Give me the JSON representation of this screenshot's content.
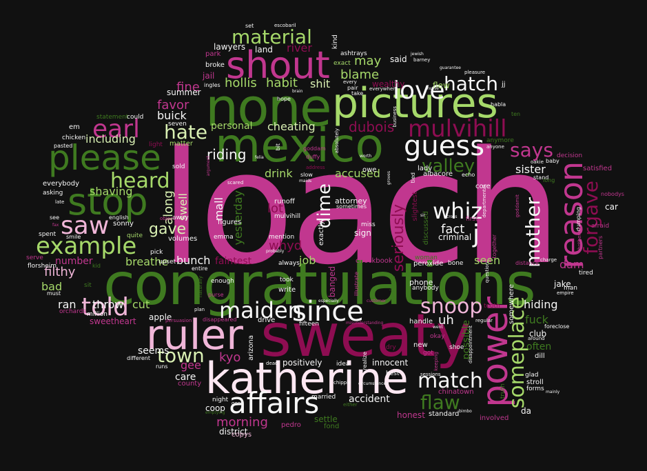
{
  "colors": {
    "background": "#111111",
    "magenta": "#c1378f",
    "dark_magenta": "#8e0d52",
    "pink": "#f0b6d8",
    "light_pink": "#fde7f2",
    "dark_green": "#3f7a20",
    "green": "#4d9221",
    "light_green": "#a6d96a",
    "pale_green": "#d9f0b3",
    "white": "#f7f7f7"
  },
  "words": {
    "loach": "loach",
    "congratulations": "congratulations",
    "sweaty": "sweaty",
    "katherine": "katherine",
    "mexico": "mexico",
    "none": "none",
    "pictures": "pictures",
    "ruler": "ruler",
    "power": "power",
    "stop": "stop",
    "please": "please",
    "shout": "shout",
    "affairs": "affairs",
    "reason": "reason",
    "example": "example",
    "since": "since",
    "love": "love",
    "guess": "guess",
    "mulvihill": "mulvihill",
    "someplace": "someplace",
    "saw": "saw",
    "told": "told",
    "earl": "earl",
    "match": "match",
    "maiden": "maiden",
    "heard": "heard",
    "hatch": "hatch",
    "whiz": "whiz",
    "snoop": "snoop",
    "material": "material",
    "valley": "valley",
    "forgave": "forgave",
    "says": "says",
    "mother": "mother",
    "flaw": "flaw",
    "town": "town",
    "hate": "hate",
    "dime": "dime",
    "j": "j",
    "morning": "morning",
    "riding": "riding",
    "dubois": "dubois",
    "gave": "gave",
    "seriously": "seriously",
    "including": "including",
    "favor": "favor",
    "fine": "fine",
    "buick": "buick",
    "hollis": "hollis",
    "habit": "habit",
    "blame": "blame",
    "may": "may",
    "shit": "shit",
    "river": "river",
    "cheating": "cheating",
    "personal": "personal",
    "shaving": "shaving",
    "swell": "swell",
    "along": "along",
    "accused": "accused",
    "drink": "drink",
    "yesterday": "yesterday",
    "mall": "mall",
    "lot": "lot",
    "whyd": "whyd",
    "bunch": "bunch",
    "breathe": "breathe",
    "faintest": "faintest",
    "job": "job",
    "fact": "fact",
    "criminal": "criminal",
    "seen": "seen",
    "number": "number",
    "filthy": "filthy",
    "bad": "bad",
    "ran": "ran",
    "throw": "throw",
    "cut": "cut",
    "hiding": "hiding",
    "fuck": "fuck",
    "club": "club",
    "often": "often",
    "jake": "jake",
    "dam": "dam",
    "sister": "sister",
    "uh": "uh",
    "possible": "possible",
    "kyo": "kyo",
    "gee": "gee",
    "care": "care",
    "seems": "seems",
    "accident": "accident",
    "positively": "positively",
    "innocent": "innocent",
    "coop": "coop",
    "district": "district",
    "copys": "copys",
    "settle": "settle",
    "fond": "fond",
    "pedro": "pedro",
    "honest": "honest",
    "standard": "standard",
    "involved": "involved",
    "da": "da",
    "sweetheart": "sweetheart",
    "apple": "apple",
    "summer": "summer",
    "lawyers": "lawyers",
    "land": "land",
    "park": "park",
    "broke": "broke",
    "jail": "jail",
    "said": "said",
    "wealthy": "wealthy",
    "flew": "flew",
    "jj": "jj",
    "kind": "kind",
    "ashtrays": "ashtrays",
    "exact": "exact",
    "em": "em",
    "chicken": "chicken",
    "pasted": "pasted",
    "matter": "matter",
    "light": "light",
    "everybody": "everybody",
    "asking": "asking",
    "sonny": "sonny",
    "spent": "spent",
    "quite": "quite",
    "volumes": "volumes",
    "pick": "pick",
    "upset": "upset",
    "always": "always",
    "took": "took",
    "write": "write",
    "enough": "enough",
    "phone": "phone",
    "anybody": "anybody",
    "peroxide": "peroxide",
    "bone": "bone",
    "checkbook": "checkbook",
    "woman": "woman",
    "okay": "okay",
    "new": "new",
    "got": "got",
    "handle": "handle",
    "shoe": "shoe",
    "fifteen": "fifteen",
    "drive": "drive",
    "arizona": "arizona",
    "night": "night",
    "married": "married",
    "idea": "idea",
    "best": "best",
    "sessions": "sessions",
    "chinatown": "chinatown",
    "glad": "glad",
    "stroll": "stroll",
    "forms": "forms",
    "dill": "dill",
    "around": "around",
    "foreclose": "foreclose",
    "man": "man",
    "empire": "empire",
    "tired": "tired",
    "afraid": "afraid",
    "car": "car",
    "satisfied": "satisfied",
    "decision": "decision",
    "stand": "stand",
    "core": "core",
    "albacore": "albacore",
    "lady": "lady",
    "echo": "echo",
    "owe": "owe",
    "mention": "mention",
    "sign": "sign",
    "miss": "miss",
    "sometimes": "sometimes",
    "attorney": "attorney",
    "runoff": "runoff",
    "figures": "figures",
    "emma": "emma",
    "mulvihill_small": "mulvihill",
    "sold": "sold",
    "seven": "seven",
    "away": "away",
    "entire": "entire",
    "english": "english",
    "must": "must",
    "sit": "sit",
    "kid": "kid",
    "orchards": "orchards",
    "million": "million",
    "different": "different",
    "runs": "runs",
    "county": "county",
    "statement": "statement",
    "could": "could",
    "serve": "serve",
    "florsheim": "florsheim",
    "ingles": "ingles",
    "set": "set",
    "escobar": "escobaril",
    "tooth": "tooth",
    "somewhere": "somewhere",
    "distance": "distance",
    "together": "together",
    "baby": "baby",
    "long": "long",
    "nobodys": "nobodys",
    "partners": "partners",
    "dumping": "dumping",
    "hope": "hope",
    "habla": "habla",
    "everywhere": "everywhere",
    "take": "take",
    "ten": "ten",
    "anymore": "anymore",
    "anyone": "anyone",
    "bit": "bit",
    "goddam": "goddam",
    "duffy": "duffy",
    "address": "address",
    "slow": "slow",
    "maids": "maids",
    "worth": "worth",
    "tied": "tied",
    "first": "first",
    "pleasure": "pleasure",
    "circumstances": "circumstances",
    "every": "every",
    "pair": "pair",
    "plan": "plan",
    "purse": "purse",
    "disappeared": "disappeared",
    "persuasion": "persuasion",
    "especially": "especially",
    "customer": "customer",
    "misunderstanding": "misunderstanding",
    "illustrate": "illustrate",
    "banged": "banged",
    "exactly": "exactly",
    "discussed": "discussed",
    "slightest": "slightest",
    "ignition": "ignition",
    "realize": "realize",
    "either": "either",
    "chippie": "chippie",
    "dead": "dead",
    "dry": "dry",
    "regular": "regular",
    "question": "question",
    "departmental": "departmental",
    "keeping": "keeping",
    "truth": "truth",
    "charge": "charge",
    "bothering": "bothering",
    "oakie": "oakie",
    "object": "object",
    "late": "late",
    "see": "see",
    "smile": "smile",
    "naturally": "naturally",
    "scared": "scared",
    "probably": "probably",
    "empting": "emptying",
    "good": "good",
    "brain": "brain",
    "jewish": "jewish",
    "barney": "barney",
    "cross": "cross",
    "sir": "sir",
    "groves": "groves",
    "nurse": "nurse",
    "goddamit": "goddamit",
    "business": "business",
    "guarantee": "guarantee",
    "felia": "felia",
    "bimbo": "bimbo",
    "went": "went",
    "disappointment": "disappointment",
    "mainly": "mainly",
    "argument": "argument",
    "absolutely": "absolutely",
    "fax": "fax"
  }
}
